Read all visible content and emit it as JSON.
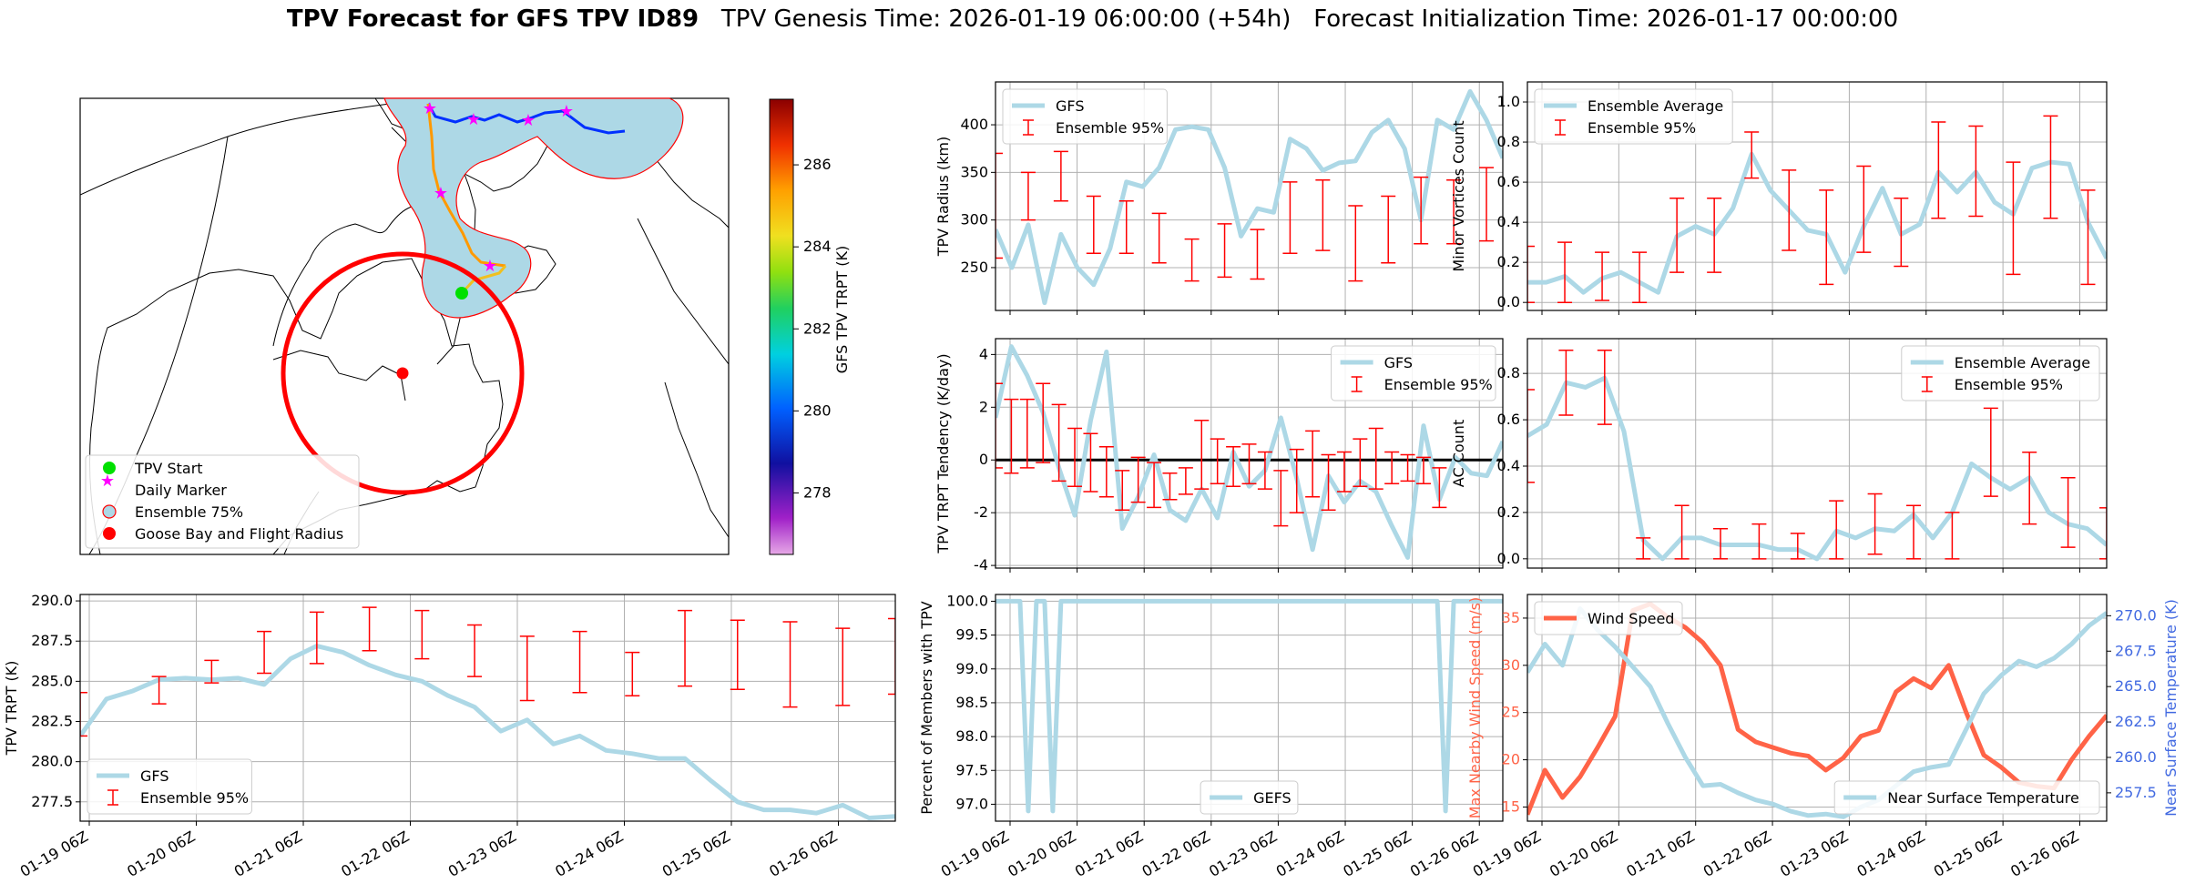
{
  "title": {
    "bold": "TPV Forecast for GFS TPV ID89",
    "genesis": "TPV Genesis Time: 2026-01-19 06:00:00 (+54h)",
    "init": "Forecast Initialization Time: 2026-01-17 00:00:00"
  },
  "colors": {
    "gfs": "#add8e6",
    "err": "#ff0000",
    "wind": "#ff6347",
    "temp_axis": "#4169e1",
    "wind_axis": "#ff6347",
    "ensemble_fill": "#add8e6",
    "track_start": "#00e000",
    "daily_marker": "#ff00ff"
  },
  "x_ticks": [
    "01-19 06Z",
    "01-20 06Z",
    "01-21 06Z",
    "01-22 06Z",
    "01-23 06Z",
    "01-24 06Z",
    "01-25 06Z",
    "01-26 06Z"
  ],
  "map": {
    "colorbar_label": "GFS TPV TRPT (K)",
    "colorbar_ticks": [
      278,
      280,
      282,
      284,
      286
    ],
    "colorbar_range": [
      276.5,
      287.6
    ],
    "legend": [
      "TPV Start",
      "Daily Marker",
      "Ensemble 75%",
      "Goose Bay and Flight Radius"
    ]
  },
  "chart_data": [
    {
      "id": "trpt",
      "type": "line",
      "title": "",
      "xlabel": "",
      "ylabel": "TPV TRPT (K)",
      "ylim": [
        276.3,
        290.4
      ],
      "yticks": [
        277.5,
        280.0,
        282.5,
        285.0,
        287.5,
        290.0
      ],
      "ytick_decimals": 1,
      "legend": [
        "GFS",
        "Ensemble 95%"
      ],
      "legend_loc": "lower-left",
      "series": [
        {
          "name": "GFS",
          "values": [
            281.6,
            283.9,
            284.4,
            285.1,
            285.2,
            285.1,
            285.2,
            284.8,
            286.4,
            287.2,
            286.8,
            286.0,
            285.4,
            285.0,
            284.1,
            283.4,
            281.9,
            282.6,
            281.1,
            281.6,
            280.7,
            280.5,
            280.2,
            280.2,
            278.8,
            277.5,
            277.0,
            277.0,
            276.8,
            277.3,
            276.5,
            276.6
          ]
        }
      ],
      "error_bars": [
        {
          "x": 0,
          "lo": 281.6,
          "hi": 284.3
        },
        {
          "x": 3,
          "lo": 283.6,
          "hi": 285.3
        },
        {
          "x": 5,
          "lo": 284.9,
          "hi": 286.3
        },
        {
          "x": 7,
          "lo": 285.5,
          "hi": 288.1
        },
        {
          "x": 9,
          "lo": 286.1,
          "hi": 289.3
        },
        {
          "x": 11,
          "lo": 286.9,
          "hi": 289.6
        },
        {
          "x": 13,
          "lo": 286.4,
          "hi": 289.4
        },
        {
          "x": 15,
          "lo": 285.3,
          "hi": 288.5
        },
        {
          "x": 17,
          "lo": 283.8,
          "hi": 287.8
        },
        {
          "x": 19,
          "lo": 284.3,
          "hi": 288.1
        },
        {
          "x": 21,
          "lo": 284.1,
          "hi": 286.8
        },
        {
          "x": 23,
          "lo": 284.7,
          "hi": 289.4
        },
        {
          "x": 25,
          "lo": 284.5,
          "hi": 288.8
        },
        {
          "x": 27,
          "lo": 283.4,
          "hi": 288.7
        },
        {
          "x": 29,
          "lo": 283.5,
          "hi": 288.3
        },
        {
          "x": 31,
          "lo": 284.2,
          "hi": 288.9
        }
      ]
    },
    {
      "id": "radius",
      "type": "line",
      "ylabel": "TPV Radius (km)",
      "ylim": [
        205,
        445
      ],
      "yticks": [
        250,
        300,
        350,
        400
      ],
      "ytick_decimals": 0,
      "legend": [
        "GFS",
        "Ensemble 95%"
      ],
      "legend_loc": "top-left",
      "series": [
        {
          "name": "GFS",
          "values": [
            290,
            250,
            295,
            213,
            285,
            250,
            232,
            270,
            340,
            335,
            355,
            395,
            398,
            395,
            355,
            283,
            312,
            308,
            385,
            375,
            352,
            360,
            362,
            392,
            405,
            375,
            300,
            405,
            395,
            435,
            405,
            365
          ]
        }
      ],
      "error_bars": [
        {
          "x": 0,
          "lo": 260,
          "hi": 370
        },
        {
          "x": 2,
          "lo": 300,
          "hi": 350
        },
        {
          "x": 4,
          "lo": 320,
          "hi": 372
        },
        {
          "x": 6,
          "lo": 265,
          "hi": 325
        },
        {
          "x": 8,
          "lo": 265,
          "hi": 320
        },
        {
          "x": 10,
          "lo": 255,
          "hi": 307
        },
        {
          "x": 12,
          "lo": 236,
          "hi": 280
        },
        {
          "x": 14,
          "lo": 240,
          "hi": 296
        },
        {
          "x": 16,
          "lo": 238,
          "hi": 290
        },
        {
          "x": 18,
          "lo": 265,
          "hi": 340
        },
        {
          "x": 20,
          "lo": 268,
          "hi": 342
        },
        {
          "x": 22,
          "lo": 236,
          "hi": 315
        },
        {
          "x": 24,
          "lo": 255,
          "hi": 325
        },
        {
          "x": 26,
          "lo": 275,
          "hi": 345
        },
        {
          "x": 28,
          "lo": 275,
          "hi": 342
        },
        {
          "x": 30,
          "lo": 278,
          "hi": 355
        },
        {
          "x": 32,
          "lo": 232,
          "hi": 265
        }
      ]
    },
    {
      "id": "tendency",
      "type": "line",
      "ylabel": "TPV TRPT Tendency (K/day)",
      "ylim": [
        -4.1,
        4.6
      ],
      "yticks": [
        -4,
        -2,
        0,
        2,
        4
      ],
      "ytick_decimals": 0,
      "zero_line": true,
      "legend": [
        "GFS",
        "Ensemble 95%"
      ],
      "legend_loc": "top-right",
      "series": [
        {
          "name": "GFS",
          "values": [
            1.6,
            4.3,
            3.2,
            1.8,
            -0.3,
            -2.1,
            1.5,
            4.1,
            -2.6,
            -1.4,
            0.2,
            -1.9,
            -2.3,
            -1.1,
            -2.2,
            0.3,
            -1.0,
            -0.4,
            1.6,
            -0.7,
            -3.4,
            -0.6,
            -1.6,
            -0.8,
            -1.2,
            -2.5,
            -3.7,
            1.3,
            -1.5,
            0.1,
            -0.5,
            -0.6,
            0.7
          ]
        }
      ],
      "error_bars": [
        {
          "x": 0,
          "lo": -0.3,
          "hi": 2.9
        },
        {
          "x": 1,
          "lo": -0.5,
          "hi": 2.3
        },
        {
          "x": 2,
          "lo": -0.3,
          "hi": 2.3
        },
        {
          "x": 3,
          "lo": -0.1,
          "hi": 2.9
        },
        {
          "x": 4,
          "lo": -0.8,
          "hi": 2.1
        },
        {
          "x": 5,
          "lo": -1.0,
          "hi": 1.2
        },
        {
          "x": 6,
          "lo": -1.2,
          "hi": 1.0
        },
        {
          "x": 7,
          "lo": -1.4,
          "hi": 0.5
        },
        {
          "x": 8,
          "lo": -1.9,
          "hi": -0.4
        },
        {
          "x": 9,
          "lo": -1.6,
          "hi": 0.1
        },
        {
          "x": 10,
          "lo": -1.8,
          "hi": -0.1
        },
        {
          "x": 11,
          "lo": -1.5,
          "hi": -0.5
        },
        {
          "x": 12,
          "lo": -1.3,
          "hi": -0.3
        },
        {
          "x": 13,
          "lo": -1.1,
          "hi": 1.5
        },
        {
          "x": 14,
          "lo": -0.9,
          "hi": 0.8
        },
        {
          "x": 15,
          "lo": -1.0,
          "hi": 0.5
        },
        {
          "x": 16,
          "lo": -0.9,
          "hi": 0.6
        },
        {
          "x": 17,
          "lo": -1.1,
          "hi": 0.3
        },
        {
          "x": 18,
          "lo": -2.5,
          "hi": -0.4
        },
        {
          "x": 19,
          "lo": -2.0,
          "hi": 0.4
        },
        {
          "x": 20,
          "lo": -1.4,
          "hi": 1.1
        },
        {
          "x": 21,
          "lo": -1.9,
          "hi": 0.2
        },
        {
          "x": 22,
          "lo": -1.2,
          "hi": 0.3
        },
        {
          "x": 23,
          "lo": -1.0,
          "hi": 0.8
        },
        {
          "x": 24,
          "lo": -1.1,
          "hi": 1.2
        },
        {
          "x": 25,
          "lo": -0.9,
          "hi": 0.3
        },
        {
          "x": 26,
          "lo": -0.8,
          "hi": 0.2
        },
        {
          "x": 27,
          "lo": -0.9,
          "hi": 0.1
        },
        {
          "x": 28,
          "lo": -1.8,
          "hi": -0.3
        }
      ]
    },
    {
      "id": "members",
      "type": "line",
      "ylabel": "Percent of Members with TPV",
      "ylim": [
        96.75,
        100.1
      ],
      "yticks": [
        97.0,
        97.5,
        98.0,
        98.5,
        99.0,
        99.5,
        100.0
      ],
      "ytick_decimals": 1,
      "legend": [
        "GEFS"
      ],
      "legend_loc": "bottom-center",
      "series": [
        {
          "name": "GEFS",
          "values": [
            100,
            100,
            100,
            100,
            96.9,
            100,
            100,
            96.9,
            100,
            100,
            100,
            100,
            100,
            100,
            100,
            100,
            100,
            100,
            100,
            100,
            100,
            100,
            100,
            100,
            100,
            100,
            100,
            100,
            100,
            100,
            100,
            100,
            100,
            100,
            100,
            100,
            100,
            100,
            100,
            100,
            100,
            100,
            100,
            100,
            100,
            100,
            100,
            100,
            100,
            100,
            100,
            100,
            100,
            100,
            100,
            96.9,
            100,
            100,
            100,
            100,
            100,
            100,
            100
          ]
        }
      ]
    },
    {
      "id": "minor",
      "type": "line",
      "ylabel": "Minor Vortices Count",
      "ylim": [
        -0.04,
        1.1
      ],
      "yticks": [
        0.0,
        0.2,
        0.4,
        0.6,
        0.8,
        1.0
      ],
      "ytick_decimals": 1,
      "legend": [
        "Ensemble Average",
        "Ensemble 95%"
      ],
      "legend_loc": "top-left",
      "series": [
        {
          "name": "Ensemble Average",
          "values": [
            0.1,
            0.1,
            0.13,
            0.05,
            0.12,
            0.15,
            0.1,
            0.05,
            0.33,
            0.38,
            0.34,
            0.47,
            0.74,
            0.56,
            0.46,
            0.36,
            0.34,
            0.15,
            0.38,
            0.57,
            0.34,
            0.39,
            0.65,
            0.55,
            0.65,
            0.5,
            0.44,
            0.67,
            0.7,
            0.69,
            0.4,
            0.22
          ]
        }
      ],
      "error_bars": [
        {
          "x": 0,
          "lo": 0.0,
          "hi": 0.28
        },
        {
          "x": 2,
          "lo": 0.0,
          "hi": 0.3
        },
        {
          "x": 4,
          "lo": 0.01,
          "hi": 0.25
        },
        {
          "x": 6,
          "lo": 0.0,
          "hi": 0.25
        },
        {
          "x": 8,
          "lo": 0.15,
          "hi": 0.52
        },
        {
          "x": 10,
          "lo": 0.15,
          "hi": 0.52
        },
        {
          "x": 12,
          "lo": 0.62,
          "hi": 0.85
        },
        {
          "x": 14,
          "lo": 0.26,
          "hi": 0.66
        },
        {
          "x": 16,
          "lo": 0.09,
          "hi": 0.56
        },
        {
          "x": 18,
          "lo": 0.25,
          "hi": 0.68
        },
        {
          "x": 20,
          "lo": 0.18,
          "hi": 0.52
        },
        {
          "x": 22,
          "lo": 0.42,
          "hi": 0.9
        },
        {
          "x": 24,
          "lo": 0.43,
          "hi": 0.88
        },
        {
          "x": 26,
          "lo": 0.14,
          "hi": 0.7
        },
        {
          "x": 28,
          "lo": 0.42,
          "hi": 0.93
        },
        {
          "x": 30,
          "lo": 0.09,
          "hi": 0.56
        }
      ]
    },
    {
      "id": "ac",
      "type": "line",
      "ylabel": "AC Count",
      "ylim": [
        -0.04,
        0.95
      ],
      "yticks": [
        0.0,
        0.2,
        0.4,
        0.6,
        0.8
      ],
      "ytick_decimals": 1,
      "legend": [
        "Ensemble Average",
        "Ensemble 95%"
      ],
      "legend_loc": "top-right",
      "series": [
        {
          "name": "Ensemble Average",
          "values": [
            0.53,
            0.58,
            0.76,
            0.74,
            0.78,
            0.55,
            0.08,
            0.0,
            0.09,
            0.09,
            0.06,
            0.06,
            0.06,
            0.04,
            0.04,
            0.0,
            0.12,
            0.09,
            0.13,
            0.12,
            0.19,
            0.09,
            0.2,
            0.41,
            0.35,
            0.3,
            0.35,
            0.2,
            0.15,
            0.13,
            0.06
          ]
        }
      ],
      "error_bars": [
        {
          "x": 0,
          "lo": 0.33,
          "hi": 0.73
        },
        {
          "x": 2,
          "lo": 0.62,
          "hi": 0.9
        },
        {
          "x": 4,
          "lo": 0.58,
          "hi": 0.9
        },
        {
          "x": 6,
          "lo": 0.0,
          "hi": 0.09
        },
        {
          "x": 8,
          "lo": 0.0,
          "hi": 0.23
        },
        {
          "x": 10,
          "lo": 0.0,
          "hi": 0.13
        },
        {
          "x": 12,
          "lo": 0.0,
          "hi": 0.15
        },
        {
          "x": 14,
          "lo": 0.0,
          "hi": 0.11
        },
        {
          "x": 16,
          "lo": 0.0,
          "hi": 0.25
        },
        {
          "x": 18,
          "lo": 0.02,
          "hi": 0.28
        },
        {
          "x": 20,
          "lo": 0.0,
          "hi": 0.23
        },
        {
          "x": 22,
          "lo": 0.0,
          "hi": 0.2
        },
        {
          "x": 24,
          "lo": 0.27,
          "hi": 0.65
        },
        {
          "x": 26,
          "lo": 0.15,
          "hi": 0.46
        },
        {
          "x": 28,
          "lo": 0.05,
          "hi": 0.35
        },
        {
          "x": 30,
          "lo": 0.0,
          "hi": 0.22
        }
      ]
    },
    {
      "id": "wind",
      "type": "line",
      "ylabel": "Max Nearby Wind Speed (m/s)",
      "ylabel_right": "Near Surface Temperature (K)",
      "ylim": [
        13.5,
        37.5
      ],
      "yticks": [
        15,
        20,
        25,
        30,
        35
      ],
      "ytick_decimals": 0,
      "ylim_right": [
        255.5,
        271.5
      ],
      "yticks_right": [
        257.5,
        260.0,
        262.5,
        265.0,
        267.5,
        270.0
      ],
      "legend": [
        "Wind Speed"
      ],
      "legend_right": [
        "Near Surface Temperature"
      ],
      "series": [
        {
          "name": "Wind Speed",
          "axis": "left",
          "values": [
            14.2,
            18.9,
            16.0,
            18.2,
            21.3,
            24.6,
            35.8,
            36.5,
            35.1,
            34.0,
            32.4,
            30.0,
            23.2,
            21.9,
            21.3,
            20.7,
            20.4,
            18.9,
            20.2,
            22.5,
            23.1,
            27.2,
            28.6,
            27.6,
            30.0,
            25.0,
            20.5,
            19.2,
            17.6,
            17.2,
            17.0,
            20.0,
            22.5,
            24.7
          ]
        },
        {
          "name": "Near Surface Temperature",
          "axis": "right",
          "values": [
            266.0,
            268.0,
            266.5,
            270.5,
            269.0,
            267.8,
            266.4,
            265.0,
            262.4,
            260.0,
            258.0,
            258.1,
            257.5,
            257.0,
            256.7,
            256.2,
            255.9,
            256.0,
            255.8,
            256.5,
            257.0,
            258.0,
            259.0,
            259.3,
            259.5,
            262.0,
            264.5,
            265.8,
            266.8,
            266.4,
            267.0,
            268.0,
            269.3,
            270.2
          ]
        }
      ]
    }
  ]
}
